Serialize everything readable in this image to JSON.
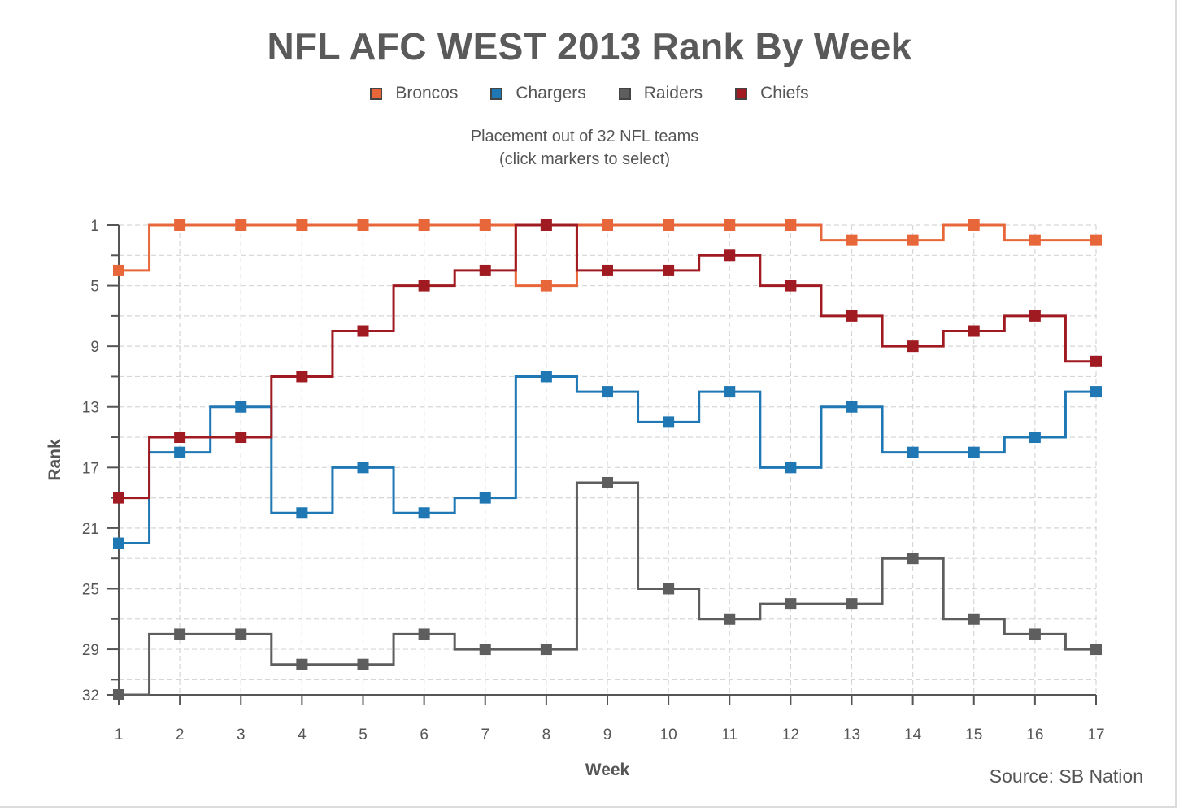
{
  "title": "NFL AFC WEST 2013 Rank By Week",
  "subtitle_line1": "Placement out of 32 NFL teams",
  "subtitle_line2": "(click markers to select)",
  "source": "Source: SB Nation",
  "chart_data": {
    "type": "line",
    "step": true,
    "title": "NFL AFC WEST 2013 Rank By Week",
    "xlabel": "Week",
    "ylabel": "Rank",
    "x": [
      1,
      2,
      3,
      4,
      5,
      6,
      7,
      8,
      9,
      10,
      11,
      12,
      13,
      14,
      15,
      16,
      17
    ],
    "xlim": [
      1,
      17
    ],
    "ylim": [
      1,
      32
    ],
    "y_inverted": true,
    "y_ticks": [
      1,
      5,
      9,
      13,
      17,
      21,
      25,
      29,
      32
    ],
    "grid": true,
    "legend": "top-center",
    "series": [
      {
        "name": "Broncos",
        "color": "#e8673a",
        "values": [
          4,
          1,
          1,
          1,
          1,
          1,
          1,
          5,
          1,
          1,
          1,
          1,
          2,
          2,
          1,
          2,
          2
        ]
      },
      {
        "name": "Chargers",
        "color": "#1f77b4",
        "values": [
          22,
          16,
          13,
          20,
          17,
          20,
          19,
          11,
          12,
          14,
          12,
          17,
          13,
          16,
          16,
          15,
          12
        ]
      },
      {
        "name": "Raiders",
        "color": "#5e5e5e",
        "values": [
          32,
          28,
          28,
          30,
          30,
          28,
          29,
          29,
          18,
          25,
          27,
          26,
          26,
          23,
          27,
          28,
          29
        ]
      },
      {
        "name": "Chiefs",
        "color": "#a01a22",
        "values": [
          19,
          15,
          15,
          11,
          8,
          5,
          4,
          1,
          4,
          4,
          3,
          5,
          7,
          9,
          8,
          7,
          10
        ]
      }
    ]
  }
}
